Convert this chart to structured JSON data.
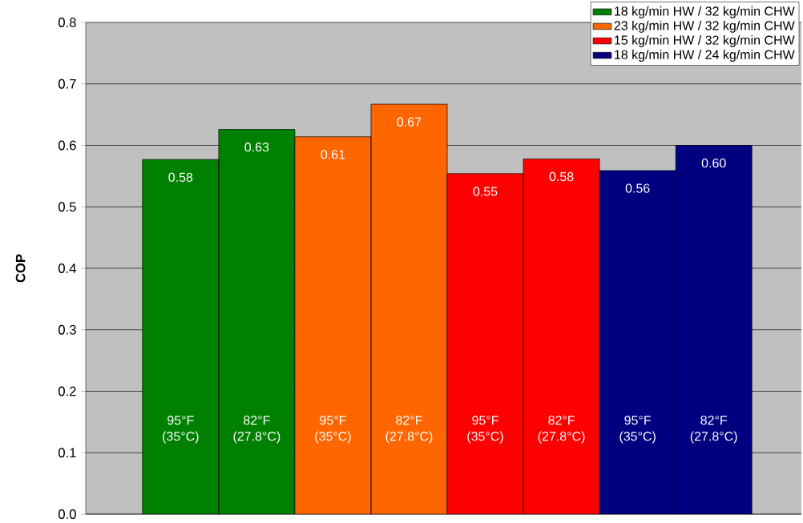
{
  "chart_data": {
    "type": "bar",
    "ylabel": "COP",
    "categories": [
      "95°F (35°C)",
      "82°F (27.8°C)",
      "95°F (35°C)",
      "82°F (27.8°C)",
      "95°F (35°C)",
      "82°F (27.8°C)",
      "95°F (35°C)",
      "82°F (27.8°C)"
    ],
    "series": [
      {
        "name": "18 kg/min HW / 32 kg/min CHW",
        "color": "#008000",
        "values": [
          0.577,
          0.626,
          null,
          null,
          null,
          null,
          null,
          null
        ],
        "value_labels": [
          "0.58",
          "0.63",
          null,
          null,
          null,
          null,
          null,
          null
        ]
      },
      {
        "name": "23 kg/min HW / 32 kg/min CHW",
        "color": "#ff6600",
        "values": [
          null,
          null,
          0.614,
          0.667,
          null,
          null,
          null,
          null
        ],
        "value_labels": [
          null,
          null,
          "0.61",
          "0.67",
          null,
          null,
          null,
          null
        ]
      },
      {
        "name": "15 kg/min HW / 32 kg/min CHW",
        "color": "#ff0000",
        "values": [
          null,
          null,
          null,
          null,
          0.554,
          0.578,
          null,
          null
        ],
        "value_labels": [
          null,
          null,
          null,
          null,
          "0.55",
          "0.58",
          null,
          null
        ]
      },
      {
        "name": "18 kg/min HW / 24 kg/min CHW",
        "color": "#000080",
        "values": [
          null,
          null,
          null,
          null,
          null,
          null,
          0.559,
          0.6
        ],
        "value_labels": [
          null,
          null,
          null,
          null,
          null,
          null,
          "0.56",
          "0.60"
        ]
      }
    ],
    "ylim": [
      0,
      0.8
    ],
    "yticks": [
      {
        "value": 0,
        "label": "0.0"
      },
      0.1,
      0.2,
      0.3,
      0.4,
      0.5,
      0.6,
      0.7,
      0.8
    ],
    "grid": "y",
    "legend": "top right"
  }
}
